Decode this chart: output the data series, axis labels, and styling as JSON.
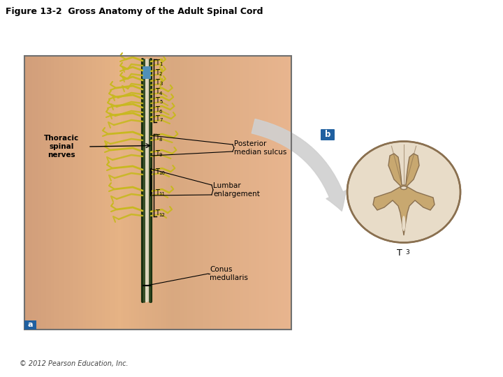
{
  "title": "Figure 13-2  Gross Anatomy of the Adult Spinal Cord",
  "title_fontsize": 9,
  "copyright": "© 2012 Pearson Education, Inc.",
  "background_color": "#ffffff",
  "skin_bg": "#c8906a",
  "skin_mid": "#d4a07a",
  "skin_light": "#deb898",
  "cord_outer": "#2d4a1e",
  "cord_inner": "#8a9a70",
  "cord_center": "#e8e0c8",
  "nerve_color": "#c8b820",
  "nerve_tip": "#d4c840",
  "blue_color": "#60a8c0",
  "bracket_color": "#000000",
  "arrow_fill": "#d8d8d8",
  "arrow_edge": "#b0b0b0",
  "cross_white_matter": "#e8dcc8",
  "cross_gray_matter": "#c8a870",
  "cross_edge": "#8a7050",
  "cross_bg": "#f0e8d8",
  "label_color": "#000000",
  "panel_a_bg": "#2060a0",
  "panel_b_bg": "#2060a0",
  "panel_a_label": "a",
  "panel_b_label": "b",
  "thoracic_label": "Thoracic\nspinal\nnerves",
  "posterior_label": "Posterior\nmedian sulcus",
  "lumbar_label": "Lumbar\nenlargement",
  "conus_label": "Conus\nmedullaris",
  "t3_label": "T",
  "t3_sub": "3",
  "t_nums": [
    "1",
    "2",
    "3",
    "4",
    "5",
    "6",
    "7",
    "8",
    "9",
    "10",
    "11",
    "12"
  ]
}
